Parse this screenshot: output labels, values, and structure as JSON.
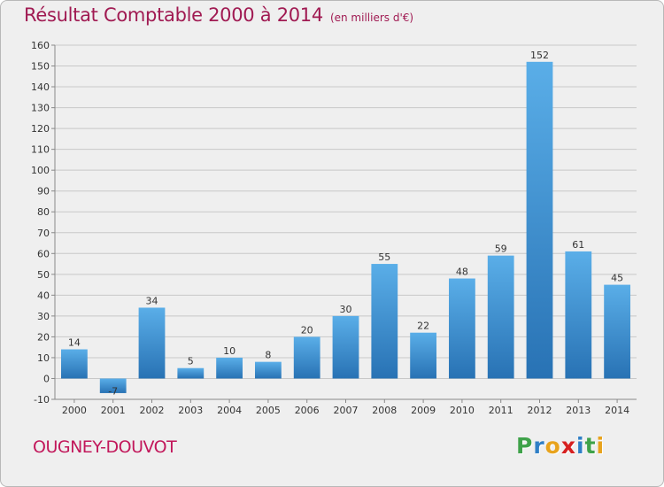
{
  "title": "Résultat Comptable 2000 à 2014",
  "subtitle": "(en milliers d'€)",
  "place": "OUGNEY-DOUVOT",
  "logo": {
    "text": "Proxiti",
    "letters": [
      "P",
      "r",
      "o",
      "x",
      "i",
      "t",
      "i"
    ],
    "colors": [
      "#3fa24a",
      "#2f7fc6",
      "#e8a31c",
      "#d62020",
      "#2f7fc6",
      "#3fa24a",
      "#e8a31c"
    ]
  },
  "colors": {
    "title": "#a01a52",
    "bar_light": "#5aaee8",
    "bar_dark": "#2872b4",
    "grid": "#c8c8c8",
    "background": "#efefef"
  },
  "chart_data": {
    "type": "bar",
    "title": "Résultat Comptable 2000 à 2014",
    "subtitle": "(en milliers d'€)",
    "xlabel": "",
    "ylabel": "",
    "categories": [
      "2000",
      "2001",
      "2002",
      "2003",
      "2004",
      "2005",
      "2006",
      "2007",
      "2008",
      "2009",
      "2010",
      "2011",
      "2012",
      "2013",
      "2014"
    ],
    "values": [
      14,
      -7,
      34,
      5,
      10,
      8,
      20,
      30,
      55,
      22,
      48,
      59,
      152,
      61,
      45
    ],
    "value_labels": [
      "14",
      "-7",
      "34",
      "5",
      "10",
      "8",
      "20",
      "30",
      "55",
      "22",
      "48",
      "59",
      "152",
      "61",
      "45"
    ],
    "ylim": [
      -10,
      160
    ],
    "yticks": [
      -10,
      0,
      10,
      20,
      30,
      40,
      50,
      60,
      70,
      80,
      90,
      100,
      110,
      120,
      130,
      140,
      150,
      160
    ],
    "grid": true,
    "legend": "none"
  }
}
